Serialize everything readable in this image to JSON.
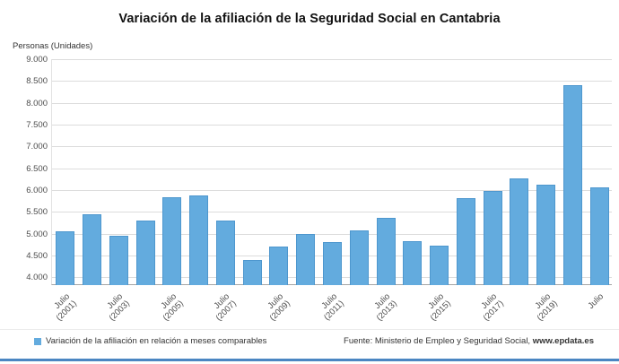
{
  "chart_data": {
    "type": "bar",
    "title": "Variación de la afiliación de la Seguridad Social en Cantabria",
    "ylabel": "Personas (Unidades)",
    "xlabel": "",
    "grid": true,
    "legend_position": "bottom-left",
    "axis_min": 3820,
    "axis_max": 9000,
    "ylim": [
      4000,
      9000
    ],
    "bar_color": "#63ABDE",
    "bar_border_color": "#4E97CE",
    "yticks": [
      {
        "value": 9000,
        "label": "9.000"
      },
      {
        "value": 8500,
        "label": "8.500"
      },
      {
        "value": 8000,
        "label": "8.000"
      },
      {
        "value": 7500,
        "label": "7.500"
      },
      {
        "value": 7000,
        "label": "7.000"
      },
      {
        "value": 6500,
        "label": "6.500"
      },
      {
        "value": 6000,
        "label": "6.000"
      },
      {
        "value": 5500,
        "label": "5.500"
      },
      {
        "value": 5000,
        "label": "5.000"
      },
      {
        "value": 4500,
        "label": "4.500"
      },
      {
        "value": 4000,
        "label": "4.000"
      }
    ],
    "values": [
      5050,
      5440,
      4950,
      5290,
      5840,
      5870,
      5300,
      4400,
      4700,
      5000,
      4810,
      5080,
      5370,
      4830,
      4720,
      5820,
      5980,
      6270,
      6130,
      8410,
      6060
    ],
    "bar_labels": [
      "Julio|(2001)",
      "",
      "Julio|(2003)",
      "",
      "Julio|(2005)",
      "",
      "Julio|(2007)",
      "",
      "Julio|(2009)",
      "",
      "Julio|(2011)",
      "",
      "Julio|(2013)",
      "",
      "Julio|(2015)",
      "",
      "Julio|(2017)",
      "",
      "Julio|(2019)",
      "",
      "Julio"
    ]
  },
  "legend": {
    "label": "Variación de la afiliación en relación a meses comparables",
    "swatch_color": "#63ABDE"
  },
  "source": {
    "prefix": "Fuente: Ministerio de Empleo y Seguridad Social, ",
    "site": "www.epdata.es"
  },
  "colors": {
    "grid": "#dcdcdc",
    "accent_line": "#4B86C2"
  }
}
